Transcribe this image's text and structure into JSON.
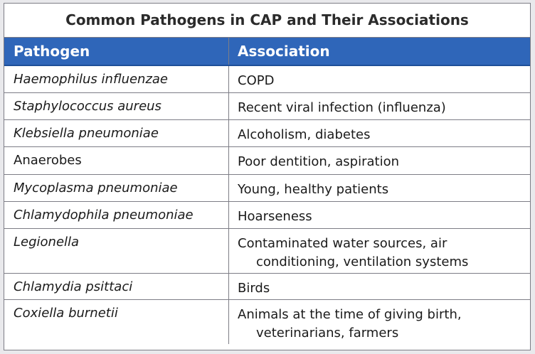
{
  "table": {
    "title": "Common Pathogens in CAP and Their Associations",
    "headers": {
      "pathogen": "Pathogen",
      "association": "Association"
    },
    "rows": [
      {
        "pathogen": "Haemophilus influenzae",
        "association": "COPD",
        "association_line2": ""
      },
      {
        "pathogen": "Staphylococcus aureus",
        "association": "Recent viral infection (influenza)",
        "association_line2": ""
      },
      {
        "pathogen": "Klebsiella pneumoniae",
        "association": "Alcoholism, diabetes",
        "association_line2": ""
      },
      {
        "pathogen": "Anaerobes",
        "association": "Poor dentition, aspiration",
        "association_line2": ""
      },
      {
        "pathogen": "Mycoplasma pneumoniae",
        "association": "Young, healthy patients",
        "association_line2": ""
      },
      {
        "pathogen": "Chlamydophila pneumoniae",
        "association": "Hoarseness",
        "association_line2": ""
      },
      {
        "pathogen": "Legionella",
        "association": "Contaminated water sources, air",
        "association_line2": "conditioning, ventilation systems"
      },
      {
        "pathogen": "Chlamydia psittaci",
        "association": "Birds",
        "association_line2": ""
      },
      {
        "pathogen": "Coxiella burnetii",
        "association": "Animals at the time of giving birth,",
        "association_line2": "veterinarians, farmers"
      }
    ]
  }
}
